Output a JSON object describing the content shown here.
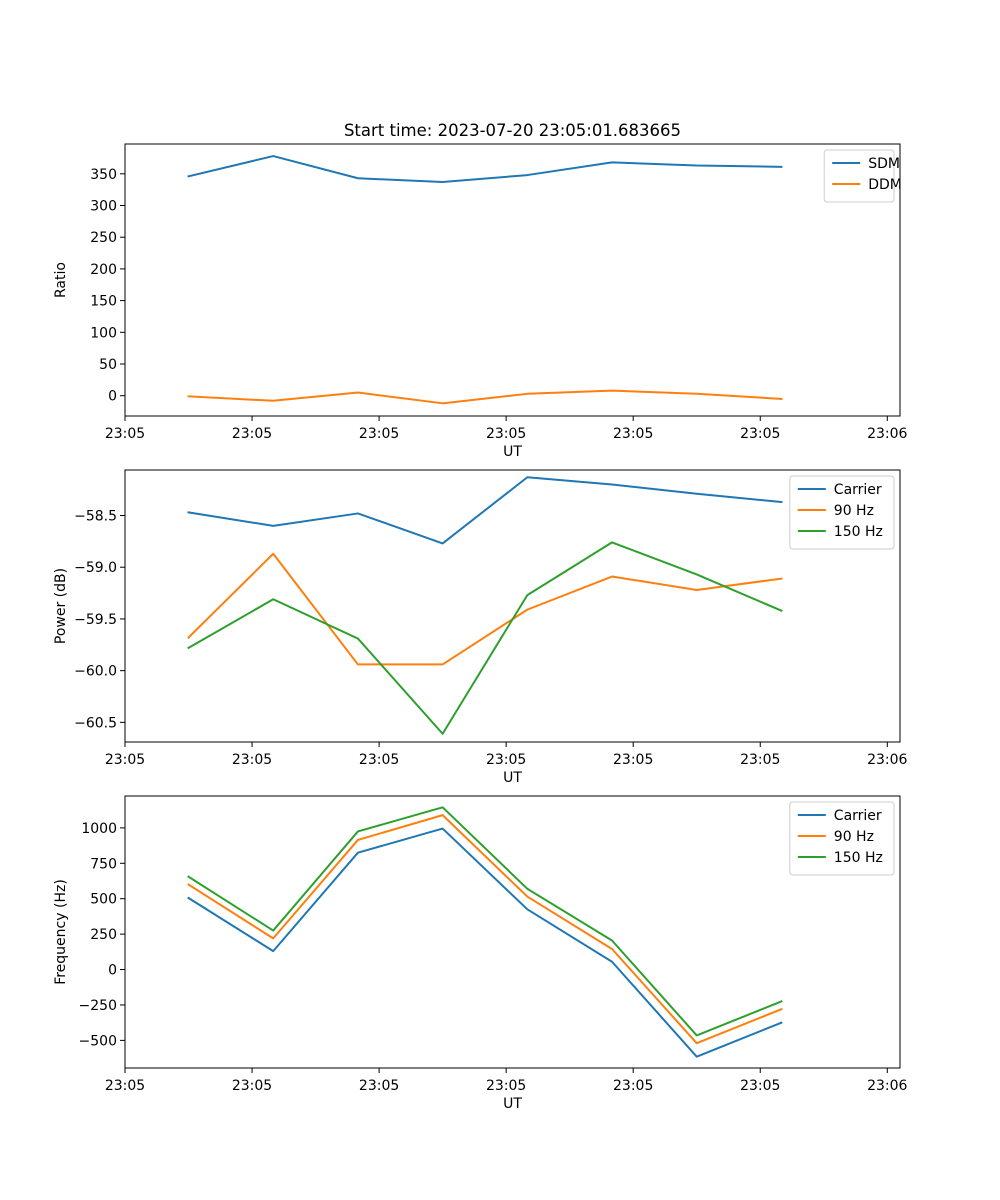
{
  "figure_title": "Start time: 2023-07-20 23:05:01.683665",
  "chart_data": [
    {
      "type": "line",
      "title": "Start time: 2023-07-20 23:05:01.683665",
      "xlabel": "UT",
      "ylabel": "Ratio",
      "x": [
        0,
        1,
        2,
        3,
        4,
        5,
        6,
        7
      ],
      "xlim": [
        -0.75,
        8.4
      ],
      "x_ticks": [
        -0.75,
        0.75,
        2.25,
        3.75,
        5.25,
        6.75,
        8.25
      ],
      "x_tick_labels": [
        "23:05",
        "23:05",
        "23:05",
        "23:05",
        "23:05",
        "23:05",
        "23:06"
      ],
      "ylim": [
        -32,
        397
      ],
      "y_ticks": [
        0,
        50,
        100,
        150,
        200,
        250,
        300,
        350
      ],
      "y_tick_labels": [
        "0",
        "50",
        "100",
        "150",
        "200",
        "250",
        "300",
        "350"
      ],
      "legend_position": "top-right",
      "series": [
        {
          "name": "SDM",
          "color": "#1f77b4",
          "values": [
            346,
            378,
            343,
            337,
            348,
            368,
            363,
            361
          ]
        },
        {
          "name": "DDM",
          "color": "#ff7f0e",
          "values": [
            -1,
            -8,
            5,
            -12,
            3,
            8,
            3,
            -5
          ]
        }
      ]
    },
    {
      "type": "line",
      "title": "",
      "xlabel": "UT",
      "ylabel": "Power (dB)",
      "x": [
        0,
        1,
        2,
        3,
        4,
        5,
        6,
        7
      ],
      "xlim": [
        -0.75,
        8.4
      ],
      "x_ticks": [
        -0.75,
        0.75,
        2.25,
        3.75,
        5.25,
        6.75,
        8.25
      ],
      "x_tick_labels": [
        "23:05",
        "23:05",
        "23:05",
        "23:05",
        "23:05",
        "23:05",
        "23:06"
      ],
      "ylim": [
        -60.69,
        -58.06
      ],
      "y_ticks": [
        -60.5,
        -60.0,
        -59.5,
        -59.0,
        -58.5
      ],
      "y_tick_labels": [
        "−60.5",
        "−60.0",
        "−59.5",
        "−59.0",
        "−58.5"
      ],
      "legend_position": "top-right",
      "series": [
        {
          "name": "Carrier",
          "color": "#1f77b4",
          "values": [
            -58.47,
            -58.6,
            -58.48,
            -58.77,
            -58.13,
            -58.2,
            -58.29,
            -58.37
          ]
        },
        {
          "name": "90 Hz",
          "color": "#ff7f0e",
          "values": [
            -59.68,
            -58.87,
            -59.94,
            -59.94,
            -59.41,
            -59.09,
            -59.22,
            -59.11
          ]
        },
        {
          "name": "150 Hz",
          "color": "#2ca02c",
          "values": [
            -59.78,
            -59.31,
            -59.69,
            -60.61,
            -59.27,
            -58.76,
            -59.07,
            -59.42
          ]
        }
      ]
    },
    {
      "type": "line",
      "title": "",
      "xlabel": "UT",
      "ylabel": "Frequency (Hz)",
      "x": [
        0,
        1,
        2,
        3,
        4,
        5,
        6,
        7
      ],
      "xlim": [
        -0.75,
        8.4
      ],
      "x_ticks": [
        -0.75,
        0.75,
        2.25,
        3.75,
        5.25,
        6.75,
        8.25
      ],
      "x_tick_labels": [
        "23:05",
        "23:05",
        "23:05",
        "23:05",
        "23:05",
        "23:05",
        "23:06"
      ],
      "ylim": [
        -695,
        1225
      ],
      "y_ticks": [
        -500,
        -250,
        0,
        250,
        500,
        750,
        1000
      ],
      "y_tick_labels": [
        "−500",
        "−250",
        "0",
        "250",
        "500",
        "750",
        "1000"
      ],
      "legend_position": "top-right",
      "series": [
        {
          "name": "Carrier",
          "color": "#1f77b4",
          "values": [
            505,
            130,
            825,
            995,
            425,
            55,
            -615,
            -375
          ]
        },
        {
          "name": "90 Hz",
          "color": "#ff7f0e",
          "values": [
            600,
            220,
            915,
            1090,
            515,
            145,
            -520,
            -280
          ]
        },
        {
          "name": "150 Hz",
          "color": "#2ca02c",
          "values": [
            655,
            275,
            975,
            1145,
            570,
            205,
            -465,
            -225
          ]
        }
      ]
    }
  ]
}
